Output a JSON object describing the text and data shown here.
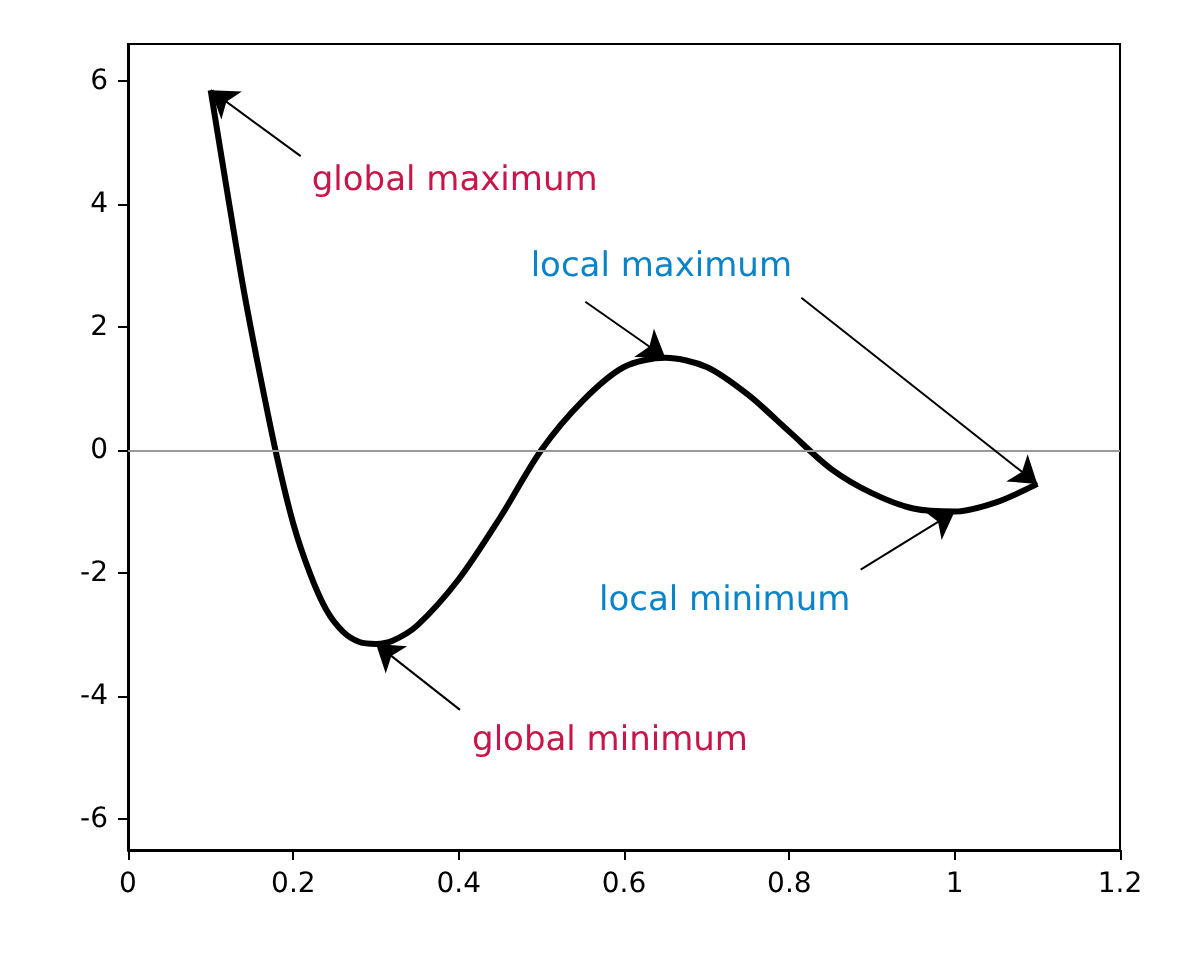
{
  "chart_data": {
    "type": "line",
    "x": [
      0.1,
      0.12,
      0.14,
      0.16,
      0.18,
      0.2,
      0.22,
      0.24,
      0.26,
      0.28,
      0.3,
      0.32,
      0.35,
      0.4,
      0.45,
      0.5,
      0.55,
      0.6,
      0.65,
      0.7,
      0.75,
      0.8,
      0.85,
      0.9,
      0.95,
      1.0,
      1.05,
      1.1
    ],
    "series": [
      {
        "color": "#000000",
        "values": [
          5.85,
          4.2,
          2.6,
          1.2,
          -0.1,
          -1.2,
          -2.0,
          -2.6,
          -2.95,
          -3.12,
          -3.15,
          -3.1,
          -2.85,
          -2.1,
          -1.1,
          0.0,
          0.8,
          1.35,
          1.5,
          1.35,
          0.9,
          0.3,
          -0.3,
          -0.7,
          -0.95,
          -1.0,
          -0.85,
          -0.55
        ]
      }
    ],
    "xlim": [
      0,
      1.2
    ],
    "xticks": [
      0,
      0.2,
      0.4,
      0.6,
      0.8,
      1,
      1.2
    ],
    "ylim": [
      -6.5,
      6.6
    ],
    "yticks": [
      -6,
      -4,
      -2,
      0,
      2,
      4,
      6
    ],
    "ref_lines": [
      {
        "axis": "y",
        "value": 0,
        "color": "#999999"
      }
    ],
    "annotations": [
      {
        "text": "global maximum",
        "x": 0.1,
        "y": 5.85
      },
      {
        "text": "global minimum",
        "x": 0.3,
        "y": -3.15
      },
      {
        "text": "local maximum",
        "x": 0.65,
        "y": 1.5
      },
      {
        "text": "local minimum",
        "x": 1.0,
        "y": -1.0
      }
    ],
    "marker": "none",
    "grid": false
  }
}
